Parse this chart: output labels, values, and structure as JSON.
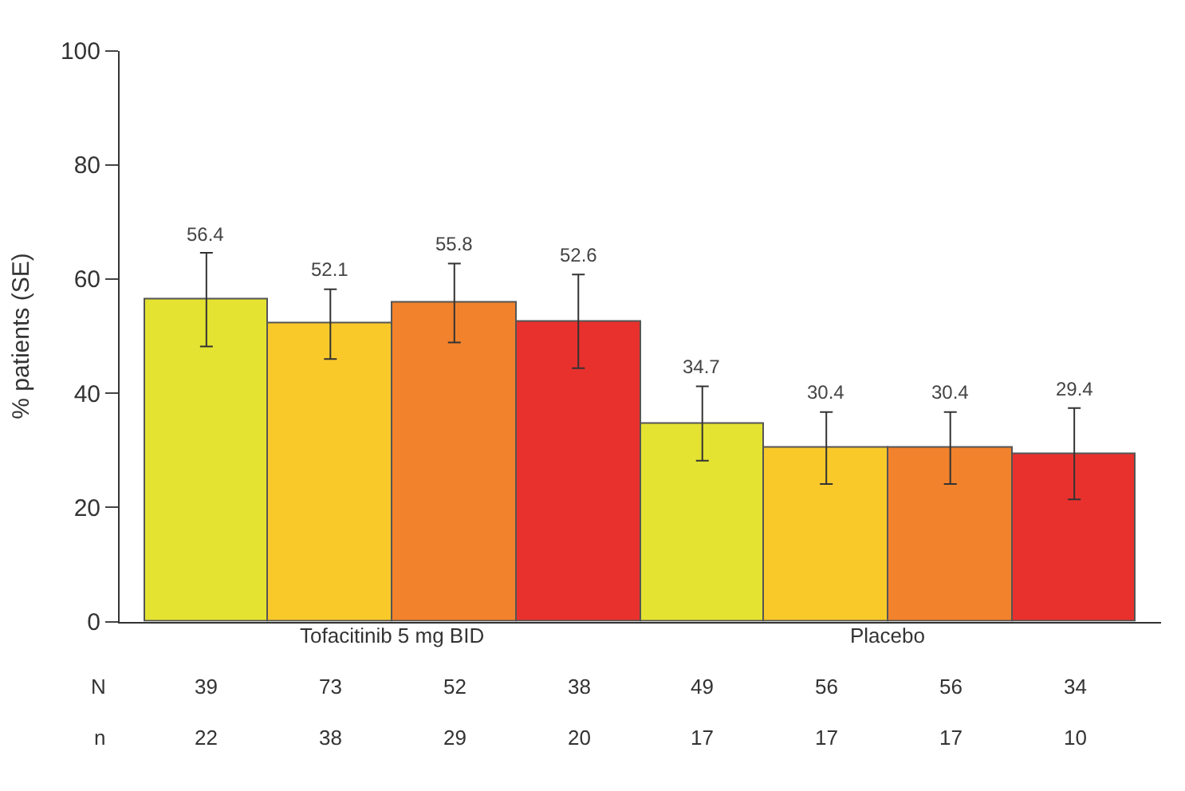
{
  "chart_data": {
    "type": "bar",
    "categories": [
      null,
      null,
      null,
      null,
      null,
      null,
      null,
      null
    ],
    "ylabel": "% patients (SE)",
    "values": [
      56.4,
      52.1,
      55.8,
      52.6,
      34.7,
      30.4,
      30.4,
      29.4
    ],
    "colors": [
      "#e4e332",
      "#f9c92a",
      "#f2822c",
      "#e8312d",
      "#e4e332",
      "#f9c92a",
      "#f2822c",
      "#e8312d"
    ],
    "errors": [
      8.2,
      6.1,
      6.9,
      8.2,
      6.5,
      6.3,
      6.3,
      8
    ],
    "data_labels": true,
    "ylim": [
      0,
      100
    ],
    "yticks": [
      0,
      20,
      40,
      60,
      80,
      100
    ],
    "annotations": [
      "Tofacitinib 5 mg BID",
      "Placebo",
      "N",
      "n",
      "39",
      "73",
      "52",
      "38",
      "49",
      "56",
      "56",
      "34",
      "22",
      "38",
      "29",
      "20",
      "17",
      "17",
      "17",
      "10"
    ]
  }
}
